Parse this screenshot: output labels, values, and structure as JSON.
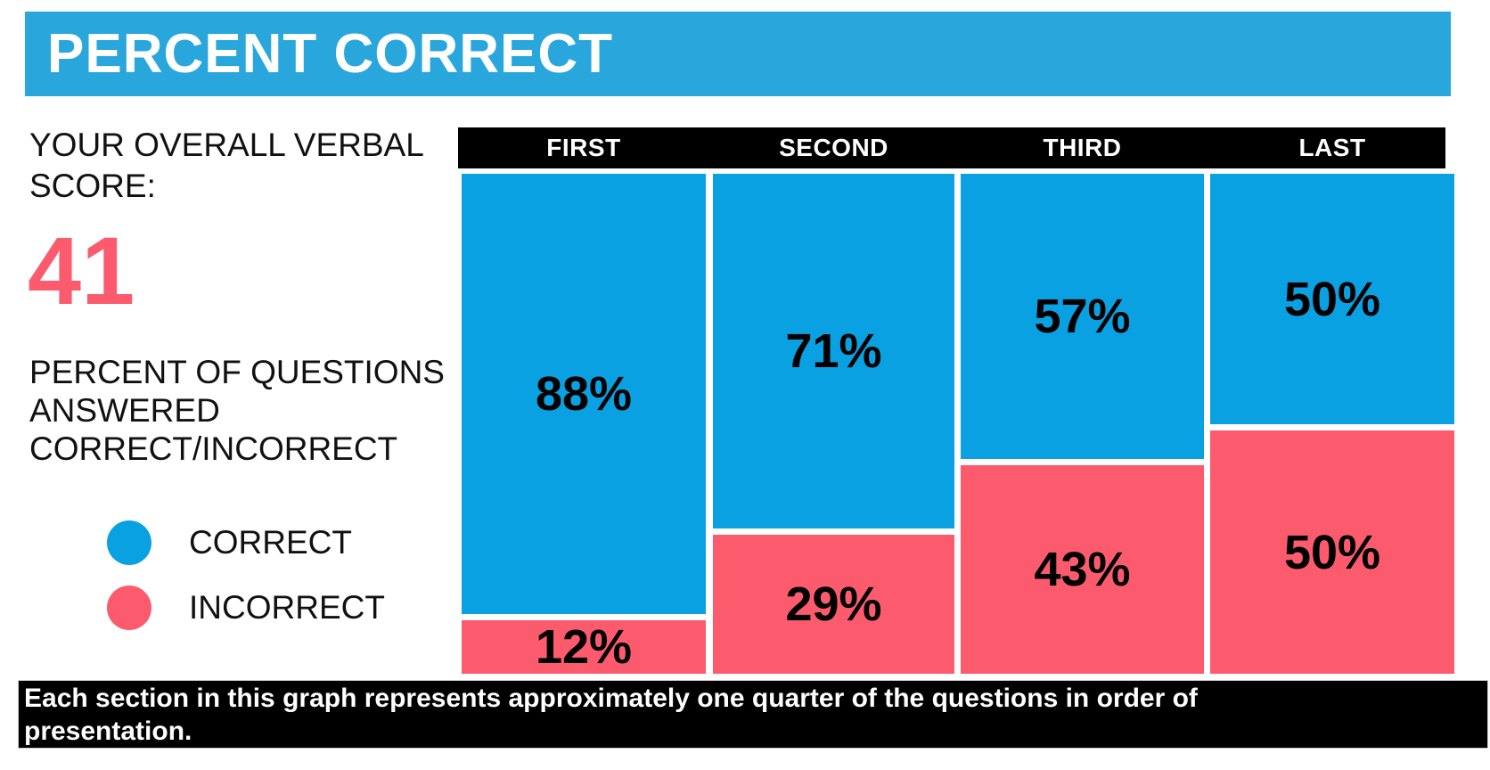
{
  "header": {
    "title": "PERCENT CORRECT"
  },
  "left_panel": {
    "score_label": "YOUR OVERALL VERBAL SCORE:",
    "score_value": "41",
    "breakdown_label": "PERCENT OF QUESTIONS ANSWERED CORRECT/INCORRECT",
    "legend": [
      {
        "label": "CORRECT",
        "color": "#0AA1E2"
      },
      {
        "label": "INCORRECT",
        "color": "#FC5B6E"
      }
    ]
  },
  "chart_data": {
    "type": "bar",
    "stacked": true,
    "title": "PERCENT CORRECT",
    "categories": [
      "FIRST",
      "SECOND",
      "THIRD",
      "LAST"
    ],
    "series": [
      {
        "name": "CORRECT",
        "color": "#0AA1E2",
        "values": [
          88,
          71,
          57,
          50
        ]
      },
      {
        "name": "INCORRECT",
        "color": "#FC5B6E",
        "values": [
          12,
          29,
          43,
          50
        ]
      }
    ],
    "value_suffix": "%",
    "ylim": [
      0,
      100
    ],
    "grid": false,
    "legend_position": "left",
    "column_header_background": "#000000"
  },
  "caption": {
    "text": "Each section in this graph represents approximately one quarter of the questions in order of presentation."
  },
  "colors": {
    "header_blue": "#29A7DC",
    "correct_blue": "#0AA1E2",
    "incorrect_pink": "#FC5B6E",
    "score_pink": "#FC5B6E",
    "band_black": "#000000"
  }
}
